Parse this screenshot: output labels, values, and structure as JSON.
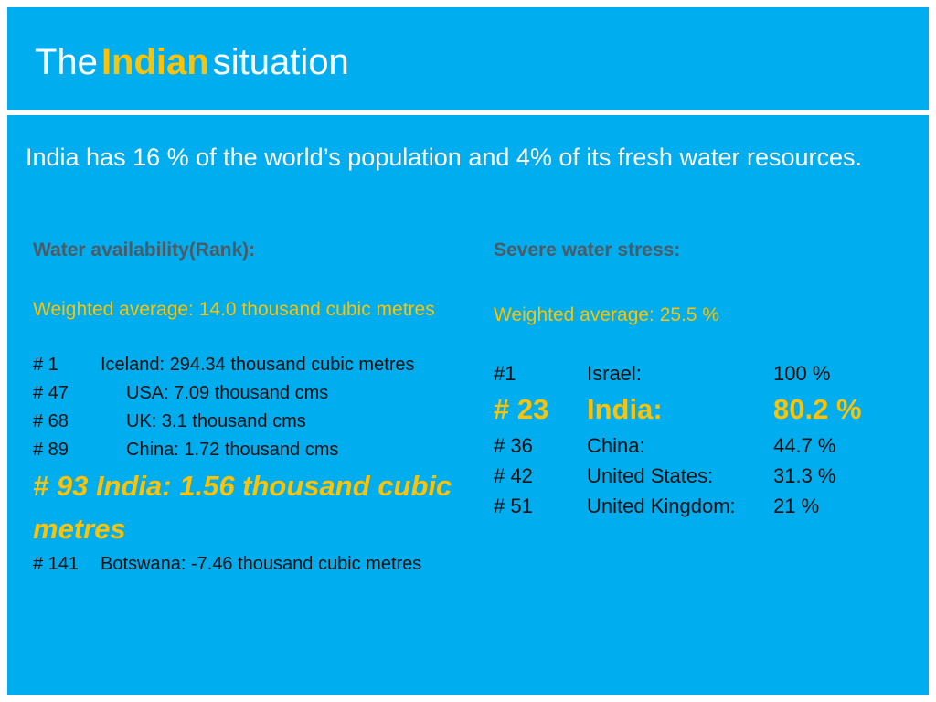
{
  "title": {
    "pre": "The",
    "highlight": "Indian",
    "post": "situation"
  },
  "intro": "India has 16 % of the world’s population and 4% of its fresh water resources.",
  "left": {
    "heading": "Water availability(Rank):",
    "weighted": "Weighted average: 14.0 thousand cubic metres",
    "rows": [
      {
        "rank": "# 1",
        "text": "Iceland:  294.34 thousand cubic metres"
      },
      {
        "rank": "# 47",
        "text": "USA:  7.09 thousand cms"
      },
      {
        "rank": "# 68",
        "text": "UK: 3.1 thousand cms"
      },
      {
        "rank": "# 89",
        "text": "China:  1.72 thousand cms"
      }
    ],
    "highlight": "# 93 India: 1.56 thousand cubic metres",
    "last": {
      "rank": "# 141",
      "text": "Botswana:   -7.46 thousand cubic metres"
    }
  },
  "right": {
    "heading": "Severe water stress:",
    "weighted": "Weighted average: 25.5 %",
    "rows": [
      {
        "rank": "#1",
        "country": "Israel:",
        "value": "100  %"
      },
      {
        "rank": "# 23",
        "country": "India:",
        "value": "80.2 %",
        "highlight": true
      },
      {
        "rank": "# 36",
        "country": "China:",
        "value": "44.7 %"
      },
      {
        "rank": "# 42",
        "country": "United States:",
        "value": "31.3 %"
      },
      {
        "rank": "# 51",
        "country": "United Kingdom:",
        "value": "21 %"
      }
    ]
  },
  "colors": {
    "background": "#00adef",
    "accent": "#fcc203",
    "heading": "#4a5b66"
  }
}
